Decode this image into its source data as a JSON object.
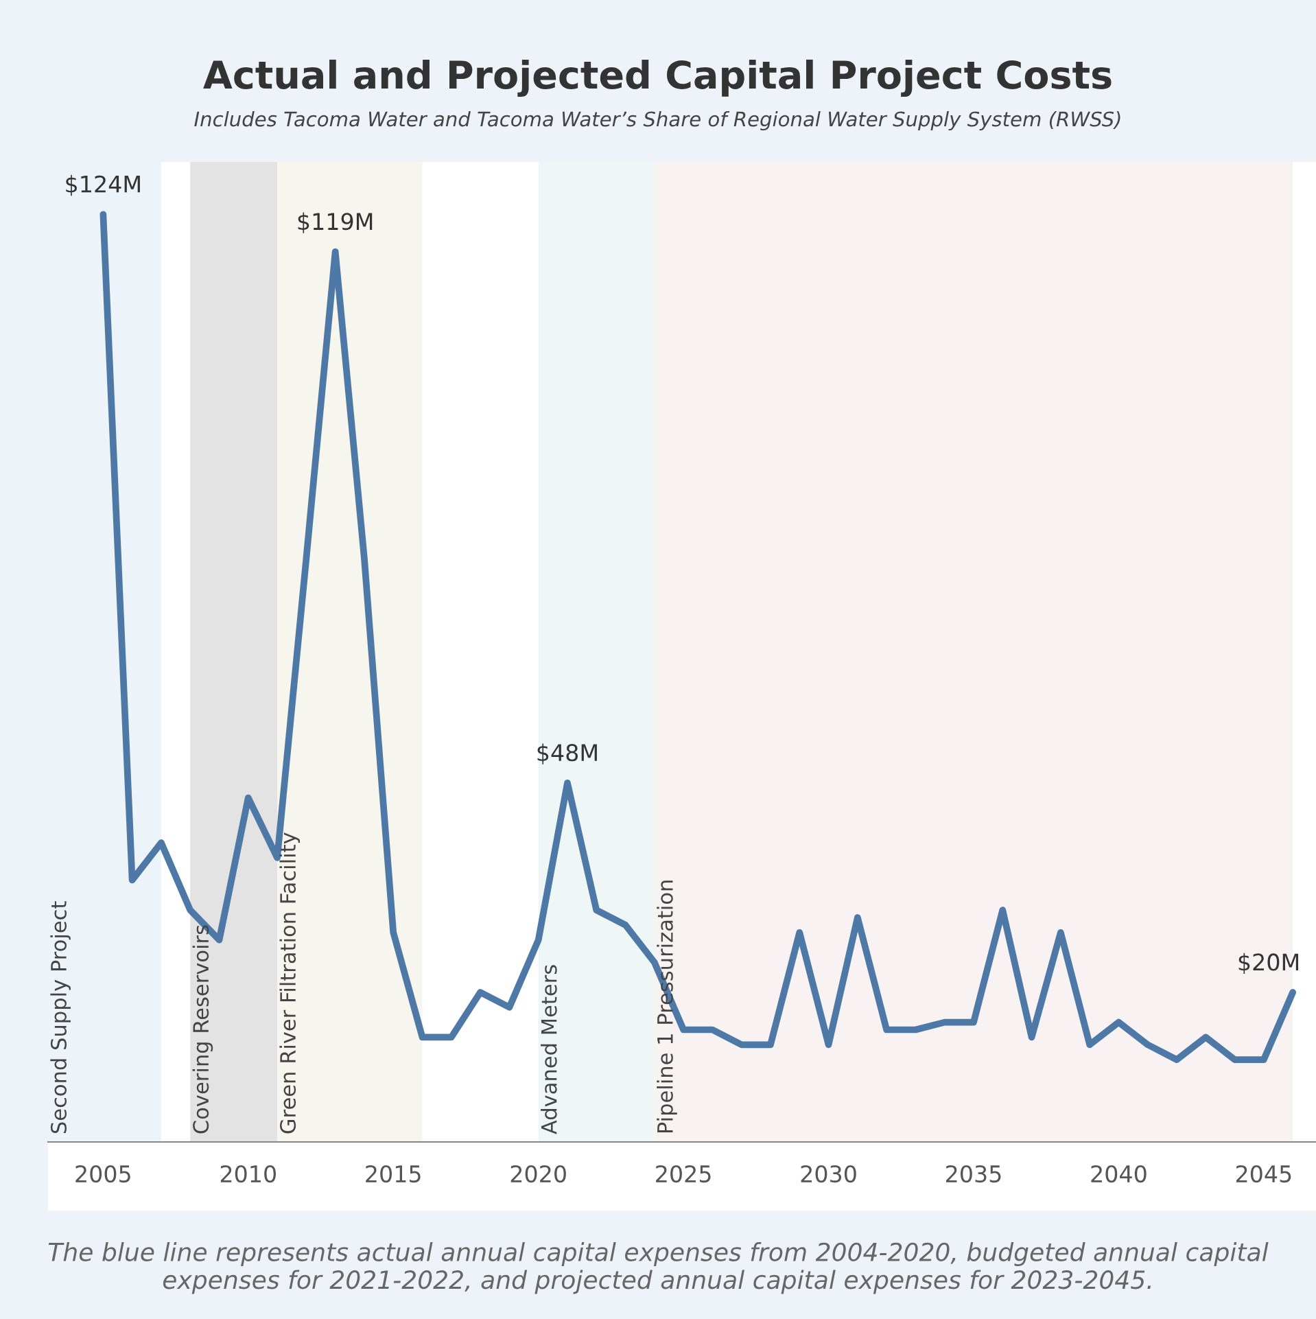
{
  "chart_data": {
    "type": "line",
    "title": "Actual and Projected Capital Project Costs",
    "subtitle": "Includes Tacoma Water and Tacoma Water’s Share of Regional Water Supply System (RWSS)",
    "x": [
      2005,
      2006,
      2007,
      2008,
      2009,
      2010,
      2011,
      2012,
      2013,
      2014,
      2015,
      2016,
      2017,
      2018,
      2019,
      2020,
      2021,
      2022,
      2023,
      2024,
      2025,
      2026,
      2027,
      2028,
      2029,
      2030,
      2031,
      2032,
      2033,
      2034,
      2035,
      2036,
      2037,
      2038,
      2039,
      2040,
      2041,
      2042,
      2043,
      2044,
      2045,
      2046
    ],
    "series": [
      {
        "color": "#4e79a7",
        "values": [
          124,
          35,
          40,
          31,
          27,
          46,
          38,
          78,
          119,
          78,
          28,
          14,
          14,
          20,
          18,
          27,
          48,
          31,
          29,
          24,
          15,
          15,
          13,
          13,
          28,
          13,
          30,
          15,
          15,
          16,
          16,
          31,
          14,
          28,
          13,
          16,
          13,
          11,
          14,
          11,
          11,
          20
        ],
        "value_labels": [
          "$124M",
          null,
          null,
          null,
          null,
          null,
          null,
          null,
          "$119M",
          null,
          null,
          null,
          null,
          null,
          null,
          null,
          "$48M",
          null,
          null,
          null,
          null,
          null,
          null,
          null,
          null,
          null,
          null,
          null,
          null,
          null,
          null,
          null,
          null,
          null,
          null,
          null,
          null,
          null,
          null,
          null,
          null,
          "$20M"
        ]
      }
    ],
    "xlim": [
      2003.1,
      2046.8
    ],
    "xticks": [
      2005,
      2010,
      2015,
      2020,
      2025,
      2030,
      2035,
      2040,
      2045
    ],
    "ylim": [
      0,
      131
    ],
    "tick_labels": "x",
    "grid": false,
    "legend": false,
    "line_style": "solid",
    "marker": "none",
    "bands": [
      {
        "axis": "x",
        "from": 2003.1,
        "to": 2007,
        "label": "Second Supply Project",
        "color": "#edf4f9"
      },
      {
        "axis": "x",
        "from": 2008,
        "to": 2011,
        "label": "Covering Reservoirs",
        "color": "#e3e3e3"
      },
      {
        "axis": "x",
        "from": 2011,
        "to": 2016,
        "label": "Green River Filtration Facility",
        "color": "#f6f5ee"
      },
      {
        "axis": "x",
        "from": 2020,
        "to": 2024,
        "label": "Advaned Meters",
        "color": "#eef7f6"
      },
      {
        "axis": "x",
        "from": 2024,
        "to": 2046,
        "label": "Pipeline 1 Pressurization",
        "color": "#f8f2f2"
      }
    ],
    "annotations": [
      "The blue line represents actual annual capital expenses from 2004-2020, budgeted annual capital expenses for 2021-2022, and projected annual capital expenses for 2023-2045."
    ]
  }
}
